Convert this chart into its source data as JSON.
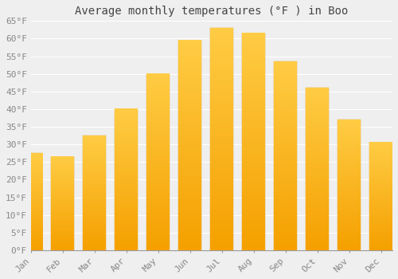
{
  "title": "Average monthly temperatures (°F ) in Boo",
  "months": [
    "Jan",
    "Feb",
    "Mar",
    "Apr",
    "May",
    "Jun",
    "Jul",
    "Aug",
    "Sep",
    "Oct",
    "Nov",
    "Dec"
  ],
  "values": [
    27.5,
    26.5,
    32.5,
    40.0,
    50.0,
    59.5,
    63.0,
    61.5,
    53.5,
    46.0,
    37.0,
    30.5
  ],
  "bar_color_top": "#FFCC44",
  "bar_color_bottom": "#F5A000",
  "bar_edge_color": "#E09000",
  "background_color": "#EFEFEF",
  "grid_color": "#FFFFFF",
  "ylim": [
    0,
    65
  ],
  "yticks": [
    0,
    5,
    10,
    15,
    20,
    25,
    30,
    35,
    40,
    45,
    50,
    55,
    60,
    65
  ],
  "ytick_labels": [
    "0°F",
    "5°F",
    "10°F",
    "15°F",
    "20°F",
    "25°F",
    "30°F",
    "35°F",
    "40°F",
    "45°F",
    "50°F",
    "55°F",
    "60°F",
    "65°F"
  ],
  "title_fontsize": 10,
  "tick_fontsize": 8,
  "tick_color": "#888888",
  "figsize": [
    5.0,
    3.5
  ],
  "dpi": 100
}
